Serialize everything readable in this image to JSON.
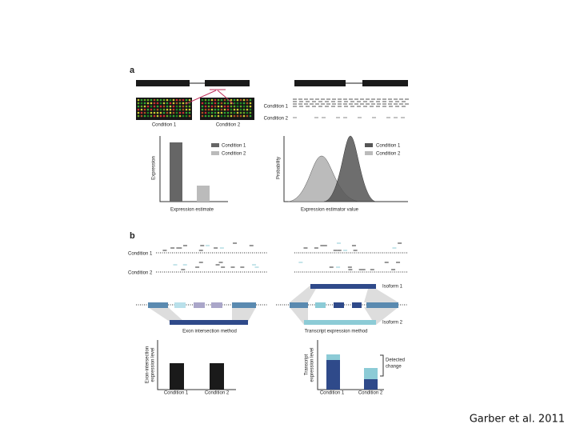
{
  "citation": "Garber et al. 2011",
  "panel_a": {
    "label": "a",
    "array_labels": [
      "Condition 1",
      "Condition 2"
    ],
    "read_labels": [
      "Condition 1",
      "Condition 2"
    ],
    "bar_chart": {
      "y_label": "Expression",
      "x_label": "Expression estimate",
      "legend": [
        "Condition 1",
        "Condition 2"
      ]
    },
    "density_chart": {
      "y_label": "Probability",
      "x_label": "Expression estimator value",
      "legend": [
        "Condition 1",
        "Condition 2"
      ]
    }
  },
  "panel_b": {
    "label": "b",
    "read_labels": [
      "Condition 1",
      "Condition 2"
    ],
    "isoforms": [
      "Isoform 1",
      "Isoform 2"
    ],
    "methods": [
      "Exon intersection method",
      "Transcript expression method"
    ],
    "left_chart": {
      "y_label_lines": [
        "Exon-intersection",
        "expression level"
      ],
      "x_labels": [
        "Condition 1",
        "Condition 2"
      ]
    },
    "right_chart": {
      "y_label_lines": [
        "Transcript",
        "expression level"
      ],
      "x_labels": [
        "Condition 1",
        "Condition 2"
      ],
      "annotation_lines": [
        "Detected",
        "change"
      ]
    }
  }
}
